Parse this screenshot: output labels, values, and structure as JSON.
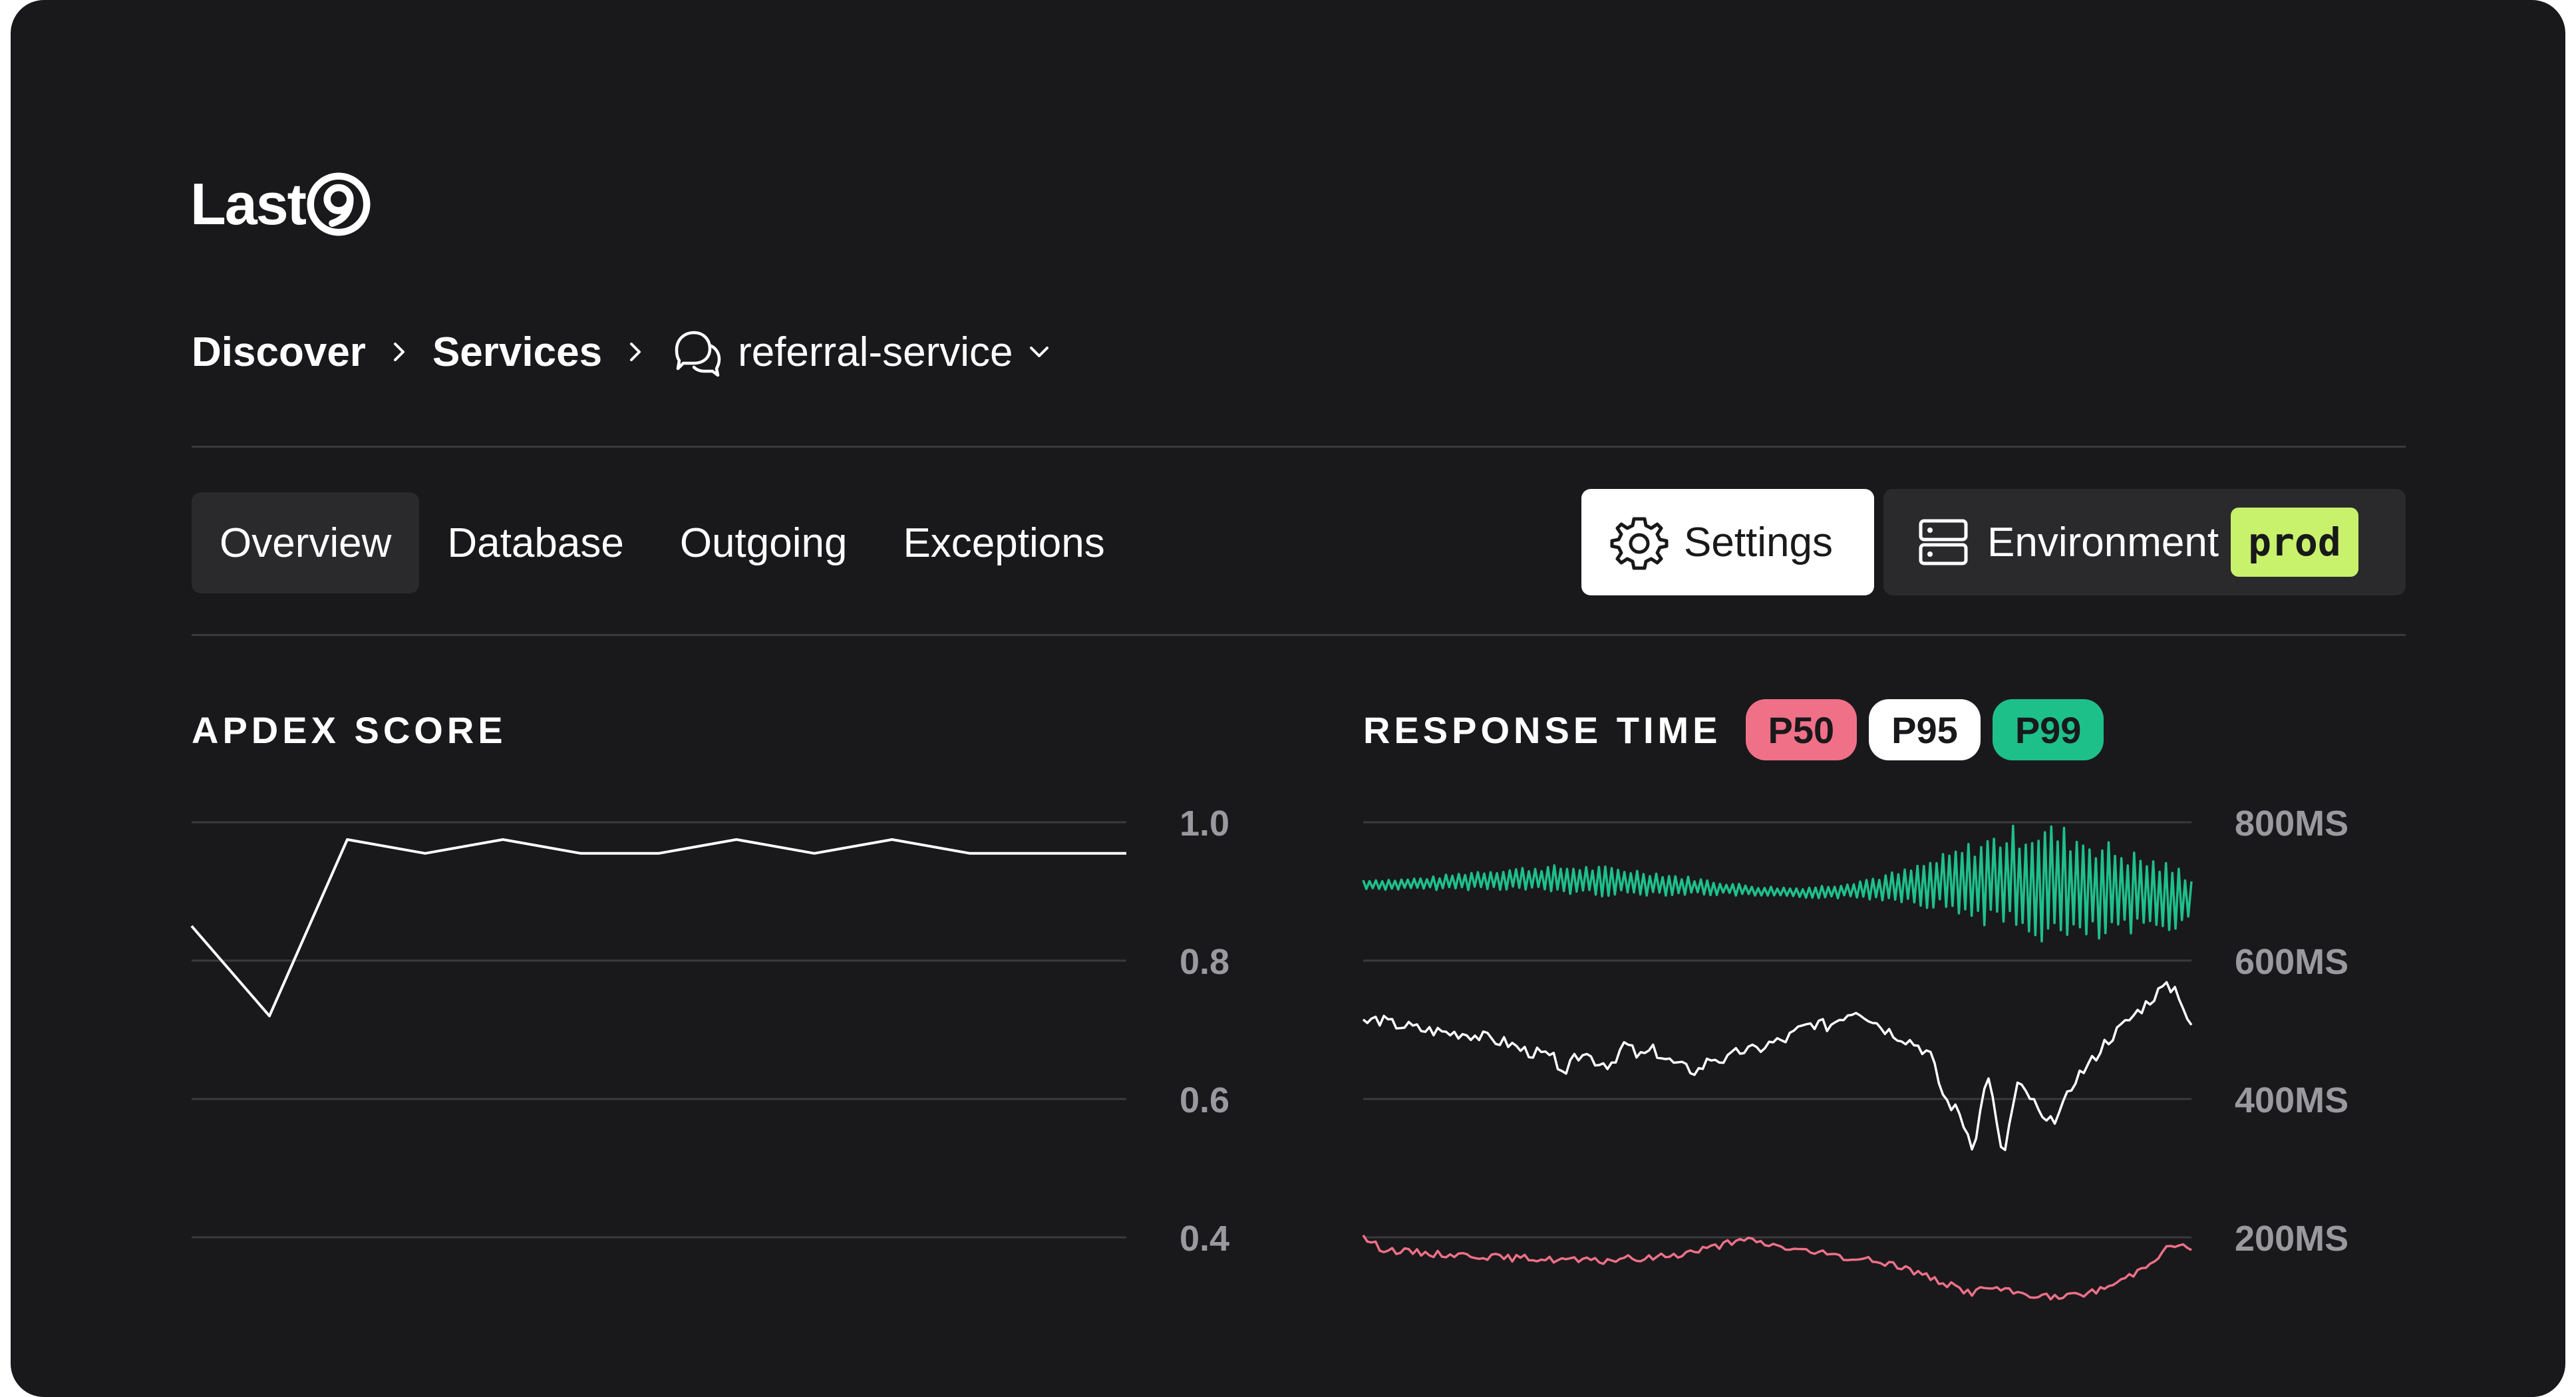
{
  "app": {
    "logo_text": "Last"
  },
  "breadcrumb": {
    "items": [
      "Discover",
      "Services"
    ],
    "current": "referral-service"
  },
  "tabs": [
    {
      "label": "Overview",
      "active": true
    },
    {
      "label": "Database",
      "active": false
    },
    {
      "label": "Outgoing",
      "active": false
    },
    {
      "label": "Exceptions",
      "active": false
    }
  ],
  "toolbar": {
    "settings_label": "Settings",
    "environment_label": "Environment",
    "environment_value": "prod"
  },
  "colors": {
    "background": "#19191b",
    "env_badge": "#c8f26c",
    "p50": "#f07088",
    "p95": "#ffffff",
    "p99": "#1ec08a"
  },
  "chart_data": [
    {
      "type": "line",
      "title": "APDEX SCORE",
      "y_ticks": [
        "1.0",
        "0.8",
        "0.6",
        "0.4"
      ],
      "ylim": [
        0.4,
        1.0
      ],
      "series": [
        {
          "values": [
            0.85,
            0.72,
            0.975,
            0.955,
            0.975,
            0.955,
            0.955,
            0.975,
            0.955,
            0.975,
            0.955,
            0.955,
            0.955
          ]
        }
      ]
    },
    {
      "type": "line",
      "title": "RESPONSE TIME",
      "legend": [
        "P50",
        "P95",
        "P99"
      ],
      "y_ticks": [
        "800MS",
        "600MS",
        "400MS",
        "200MS"
      ],
      "ylim": [
        200,
        800
      ],
      "series": [
        {
          "name": "P99",
          "color": "#1ec08a",
          "amplitude_profile": [
            8,
            8,
            10,
            14,
            16,
            20,
            22,
            22,
            18,
            14,
            10,
            8,
            8,
            10,
            16,
            24,
            40,
            60,
            80,
            90,
            85,
            70,
            55,
            40
          ],
          "baseline": [
            710,
            710,
            712,
            716,
            718,
            718,
            716,
            714,
            712,
            708,
            704,
            700,
            698,
            700,
            704,
            708,
            712,
            716,
            716,
            712,
            704,
            698,
            694,
            690
          ]
        },
        {
          "name": "P95",
          "color": "#ffffff",
          "points": [
            510,
            515,
            508,
            505,
            500,
            498,
            495,
            495,
            490,
            485,
            480,
            470,
            465,
            460,
            440,
            470,
            455,
            450,
            480,
            460,
            470,
            455,
            445,
            440,
            460,
            455,
            470,
            470,
            480,
            485,
            500,
            510,
            505,
            520,
            530,
            515,
            500,
            490,
            480,
            465,
            400,
            380,
            330,
            440,
            310,
            420,
            400,
            360,
            380,
            430,
            450,
            480,
            500,
            520,
            540,
            560,
            560,
            500
          ]
        },
        {
          "name": "P50",
          "color": "#f07088",
          "points": [
            200,
            184,
            180,
            178,
            176,
            175,
            174,
            172,
            170,
            170,
            168,
            168,
            166,
            165,
            170,
            168,
            172,
            175,
            180,
            186,
            192,
            196,
            190,
            185,
            180,
            176,
            172,
            168,
            165,
            160,
            150,
            140,
            130,
            120,
            128,
            122,
            118,
            115,
            112,
            118,
            124,
            135,
            150,
            170,
            190,
            184
          ]
        }
      ]
    }
  ]
}
